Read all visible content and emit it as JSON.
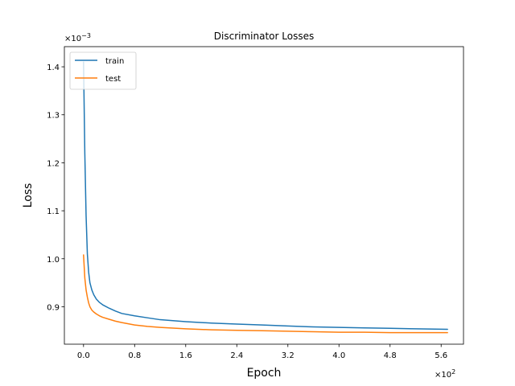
{
  "chart_data": {
    "type": "line",
    "title": "Discriminator Losses",
    "xlabel": "Epoch",
    "ylabel": "Loss",
    "x_multiplier_label": "×10^2",
    "y_multiplier_label": "×10^-3",
    "xlim": [
      -0.3,
      5.95
    ],
    "ylim": [
      0.822,
      1.442
    ],
    "xticks": [
      0.0,
      0.8,
      1.6,
      2.4,
      3.2,
      4.0,
      4.8,
      5.6
    ],
    "xtick_labels": [
      "0.0",
      "0.8",
      "1.6",
      "2.4",
      "3.2",
      "4.0",
      "4.8",
      "5.6"
    ],
    "yticks": [
      0.9,
      1.0,
      1.1,
      1.2,
      1.3,
      1.4
    ],
    "ytick_labels": [
      "0.9",
      "1.0",
      "1.1",
      "1.2",
      "1.3",
      "1.4"
    ],
    "grid": false,
    "legend_position": "top-left",
    "series": [
      {
        "name": "train",
        "color": "#1f77b4",
        "x": [
          0.0,
          0.02,
          0.04,
          0.06,
          0.08,
          0.1,
          0.13,
          0.16,
          0.2,
          0.25,
          0.3,
          0.4,
          0.5,
          0.6,
          0.8,
          1.0,
          1.2,
          1.6,
          2.0,
          2.4,
          2.8,
          3.2,
          3.6,
          4.0,
          4.4,
          4.8,
          5.2,
          5.7
        ],
        "y": [
          1.41,
          1.22,
          1.09,
          1.01,
          0.972,
          0.95,
          0.935,
          0.925,
          0.916,
          0.909,
          0.904,
          0.897,
          0.891,
          0.886,
          0.881,
          0.877,
          0.873,
          0.869,
          0.866,
          0.864,
          0.862,
          0.86,
          0.858,
          0.857,
          0.856,
          0.855,
          0.854,
          0.853
        ]
      },
      {
        "name": "test",
        "color": "#ff7f0e",
        "x": [
          0.0,
          0.02,
          0.04,
          0.06,
          0.08,
          0.1,
          0.13,
          0.16,
          0.2,
          0.25,
          0.3,
          0.4,
          0.5,
          0.6,
          0.8,
          1.0,
          1.2,
          1.6,
          2.0,
          2.4,
          2.8,
          3.2,
          3.6,
          4.0,
          4.4,
          4.8,
          5.2,
          5.7
        ],
        "y": [
          1.008,
          0.96,
          0.935,
          0.92,
          0.908,
          0.9,
          0.893,
          0.889,
          0.885,
          0.881,
          0.878,
          0.874,
          0.87,
          0.867,
          0.862,
          0.859,
          0.857,
          0.854,
          0.852,
          0.851,
          0.85,
          0.849,
          0.848,
          0.847,
          0.847,
          0.846,
          0.846,
          0.846
        ]
      }
    ]
  }
}
